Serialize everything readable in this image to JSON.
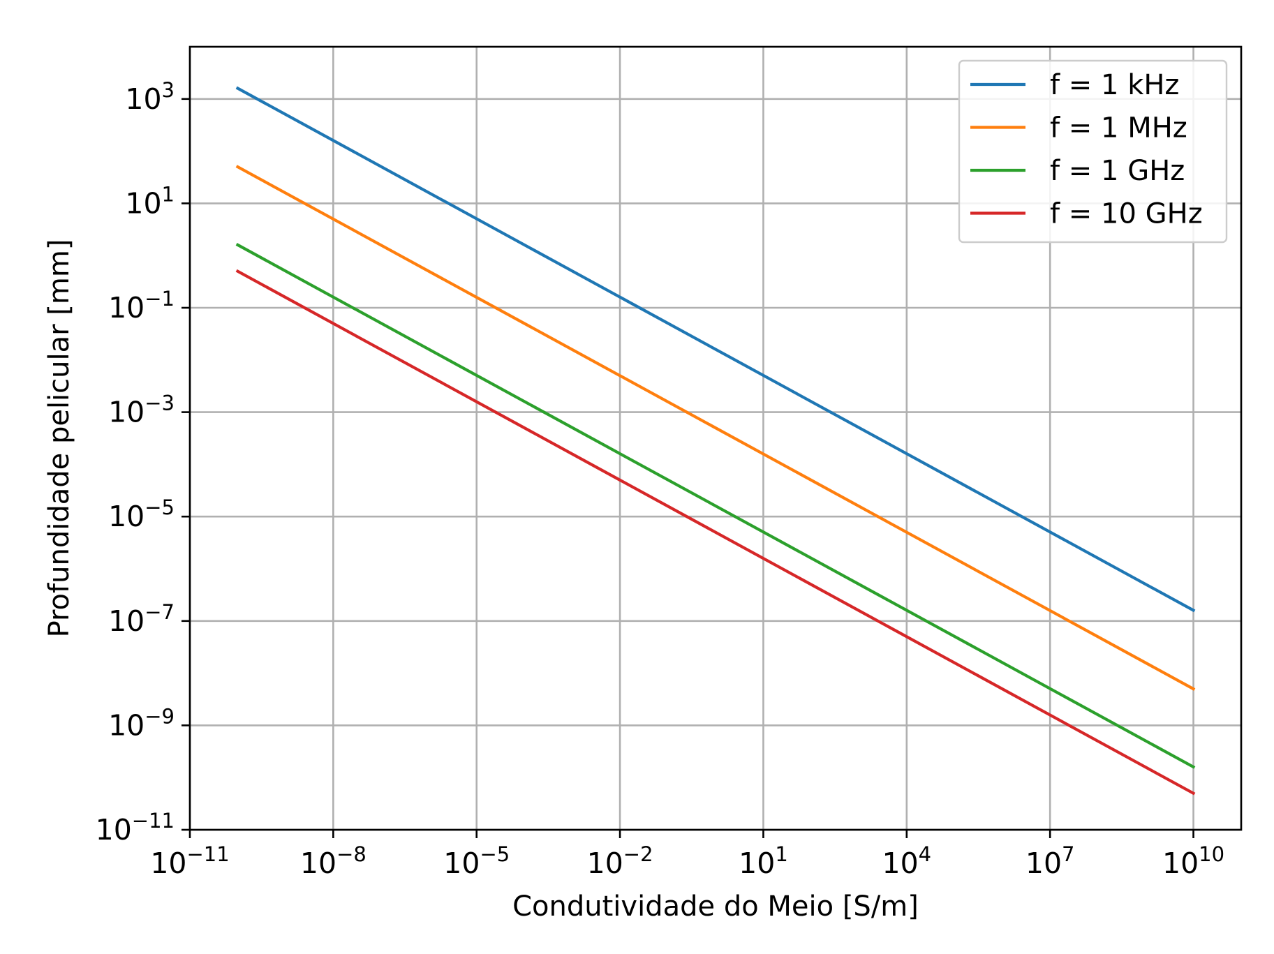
{
  "chart_data": {
    "type": "line",
    "xlabel": "Condutividade do Meio [S/m]",
    "ylabel": "Profundidade pelicular [mm]",
    "xscale": "log",
    "yscale": "log",
    "xlim": [
      1e-11,
      100000000000.0
    ],
    "ylim": [
      1e-11,
      10000.0
    ],
    "grid": true,
    "legend_position": "top-right",
    "x_ticks": [
      {
        "base": "10",
        "exp": "−11"
      },
      {
        "base": "10",
        "exp": "−8"
      },
      {
        "base": "10",
        "exp": "−5"
      },
      {
        "base": "10",
        "exp": "−2"
      },
      {
        "base": "10",
        "exp": "1"
      },
      {
        "base": "10",
        "exp": "4"
      },
      {
        "base": "10",
        "exp": "7"
      },
      {
        "base": "10",
        "exp": "10"
      }
    ],
    "y_ticks": [
      {
        "base": "10",
        "exp": "−11"
      },
      {
        "base": "10",
        "exp": "−9"
      },
      {
        "base": "10",
        "exp": "−7"
      },
      {
        "base": "10",
        "exp": "−5"
      },
      {
        "base": "10",
        "exp": "−3"
      },
      {
        "base": "10",
        "exp": "−1"
      },
      {
        "base": "10",
        "exp": "1"
      },
      {
        "base": "10",
        "exp": "3"
      }
    ],
    "series": [
      {
        "name": "f = 1 kHz",
        "color": "#1f77b4",
        "x": [
          1e-10,
          10000000000.0
        ],
        "y": [
          1600,
          1.6e-07
        ]
      },
      {
        "name": "f = 1 MHz",
        "color": "#ff7f0e",
        "x": [
          1e-10,
          10000000000.0
        ],
        "y": [
          50,
          5e-09
        ]
      },
      {
        "name": "f = 1 GHz",
        "color": "#2ca02c",
        "x": [
          1e-10,
          10000000000.0
        ],
        "y": [
          1.6,
          1.6e-10
        ]
      },
      {
        "name": "f = 10 GHz",
        "color": "#d62728",
        "x": [
          1e-10,
          10000000000.0
        ],
        "y": [
          0.5,
          5e-11
        ]
      }
    ]
  }
}
